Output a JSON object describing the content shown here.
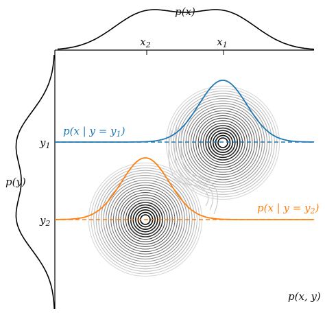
{
  "labels": {
    "px_label": "p(x)",
    "py_label": "p(y)",
    "pxy_label": "p(x, y)",
    "x1": "x",
    "x1_sub": "1",
    "x2": "x",
    "x2_sub": "2",
    "y1": "y",
    "y1_sub": "1",
    "y2": "y",
    "y2_sub": "2",
    "cond1": "p(x | y = y",
    "cond1_sub": "1",
    "cond1_end": ")",
    "cond2": "p(x | y = y",
    "cond2_sub": "2",
    "cond2_end": ")"
  },
  "colors": {
    "blue": "#1f77b4",
    "orange": "#ff7f0e",
    "axis": "#000000",
    "contour_dark": "#000000",
    "contour_light": "#cccccc"
  }
}
